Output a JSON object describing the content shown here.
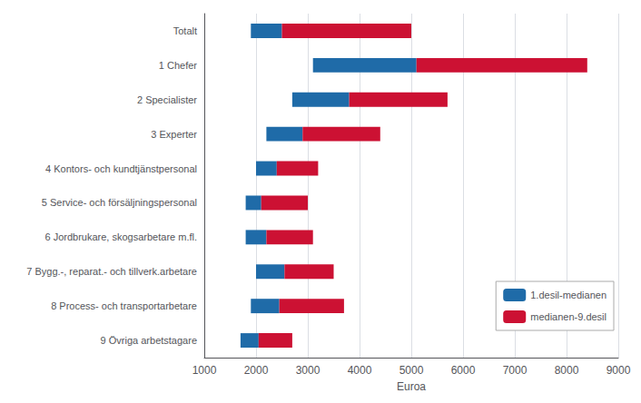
{
  "chart_data": {
    "type": "bar",
    "orientation": "horizontal",
    "categories": [
      "Totalt",
      "1 Chefer",
      "2 Specialister",
      "3 Experter",
      "4 Kontors- och kundtjänstpersonal",
      "5 Service- och försäljningspersonal",
      "6 Jordbrukare, skogsarbetare m.fl.",
      "7 Bygg.-, reparat.- och tillverk.arbetare",
      "8 Process- och transportarbetare",
      "9 Övriga arbetstagare"
    ],
    "series": [
      {
        "name": "1.desil-medianen",
        "color": "#1F6BA8",
        "values": [
          [
            1900,
            2500
          ],
          [
            3100,
            5100
          ],
          [
            2700,
            3800
          ],
          [
            2200,
            2900
          ],
          [
            2000,
            2400
          ],
          [
            1800,
            2100
          ],
          [
            1800,
            2200
          ],
          [
            2000,
            2550
          ],
          [
            1900,
            2450
          ],
          [
            1700,
            2050
          ]
        ]
      },
      {
        "name": "medianen-9.desil",
        "color": "#CC1133",
        "values": [
          [
            2500,
            5000
          ],
          [
            5100,
            8400
          ],
          [
            3800,
            5700
          ],
          [
            2900,
            4400
          ],
          [
            2400,
            3200
          ],
          [
            2100,
            3000
          ],
          [
            2200,
            3100
          ],
          [
            2550,
            3500
          ],
          [
            2450,
            3700
          ],
          [
            2050,
            2700
          ]
        ]
      }
    ],
    "xlabel": "Euroa",
    "xlim": [
      1000,
      9000
    ],
    "xticks": [
      1000,
      2000,
      3000,
      4000,
      5000,
      6000,
      7000,
      8000,
      9000
    ],
    "grid": true,
    "legend": "lower right"
  }
}
